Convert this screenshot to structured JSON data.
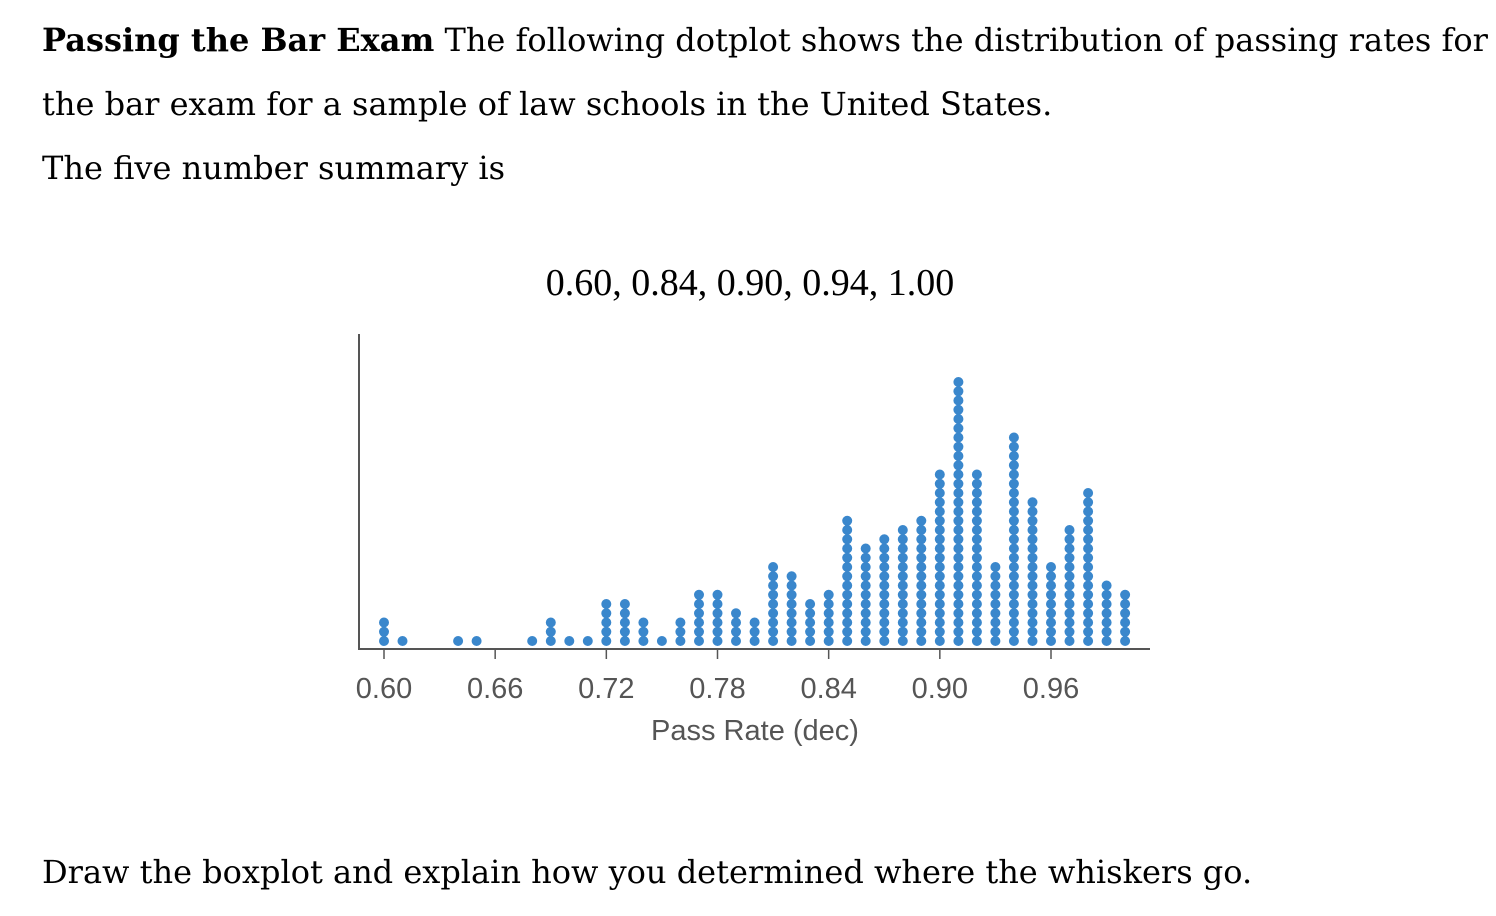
{
  "problem": {
    "title": "Passing the Bar Exam",
    "line1_rest": "The following dotplot shows the distribution of passing rates for",
    "line2": "the bar exam for a sample of law schools in the United States.",
    "line3": "The five number summary is",
    "summary": "0.60, 0.84, 0.90, 0.94, 1.00",
    "question": "Draw the boxplot and explain how you determined where the whiskers go."
  },
  "chart_data": {
    "type": "scatter",
    "title": "",
    "xlabel": "Pass Rate (dec)",
    "ylabel": "",
    "xlim": [
      0.59,
      1.0
    ],
    "xticks": [
      "0.60",
      "0.66",
      "0.72",
      "0.78",
      "0.84",
      "0.90",
      "0.96"
    ],
    "dot_color": "#3a87cc",
    "grid": false,
    "series": [
      {
        "x": [
          0.6,
          0.61,
          0.64,
          0.65,
          0.68,
          0.69,
          0.7,
          0.71,
          0.72,
          0.73,
          0.74,
          0.75,
          0.76,
          0.77,
          0.78,
          0.79,
          0.8,
          0.81,
          0.82,
          0.83,
          0.84,
          0.85,
          0.86,
          0.87,
          0.88,
          0.89,
          0.9,
          0.91,
          0.92,
          0.93,
          0.94,
          0.95,
          0.96,
          0.97,
          0.98,
          0.99,
          1.0
        ],
        "counts": [
          3,
          1,
          1,
          1,
          1,
          3,
          1,
          1,
          5,
          5,
          3,
          1,
          3,
          6,
          6,
          4,
          3,
          9,
          8,
          5,
          6,
          14,
          11,
          12,
          13,
          14,
          19,
          29,
          19,
          9,
          23,
          16,
          9,
          13,
          17,
          7,
          6
        ]
      }
    ]
  }
}
